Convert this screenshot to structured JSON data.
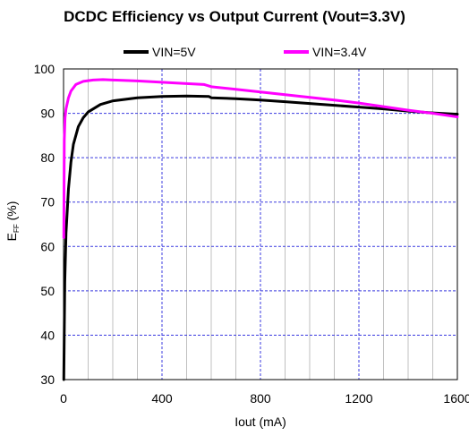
{
  "chart_data": {
    "type": "line",
    "title": "DCDC Efficiency vs Output Current (Vout=3.3V)",
    "xlabel": "Iout (mA)",
    "ylabel_main": "E",
    "ylabel_sub": "FF",
    "ylabel_tail": " (%)",
    "xlim": [
      0,
      1600
    ],
    "ylim": [
      30,
      100
    ],
    "xticks": [
      0,
      400,
      800,
      1200,
      1600
    ],
    "yticks": [
      30,
      40,
      50,
      60,
      70,
      80,
      90,
      100
    ],
    "x_minor_step": 100,
    "y_minor_step": 10,
    "grid": true,
    "legend_position": "top",
    "series": [
      {
        "name": "VIN=5V",
        "color": "#000000",
        "points": [
          [
            1,
            30
          ],
          [
            5,
            52
          ],
          [
            10,
            63
          ],
          [
            20,
            73
          ],
          [
            30,
            79
          ],
          [
            40,
            83
          ],
          [
            60,
            87
          ],
          [
            80,
            89
          ],
          [
            100,
            90.3
          ],
          [
            150,
            92
          ],
          [
            200,
            92.8
          ],
          [
            300,
            93.5
          ],
          [
            400,
            93.8
          ],
          [
            500,
            93.9
          ],
          [
            590,
            93.8
          ],
          [
            600,
            93.5
          ],
          [
            700,
            93.3
          ],
          [
            800,
            93
          ],
          [
            900,
            92.6
          ],
          [
            1000,
            92.2
          ],
          [
            1100,
            91.8
          ],
          [
            1200,
            91.4
          ],
          [
            1300,
            91
          ],
          [
            1400,
            90.5
          ],
          [
            1500,
            90.1
          ],
          [
            1600,
            89.8
          ]
        ]
      },
      {
        "name": "VIN=3.4V",
        "color": "#ff00ff",
        "points": [
          [
            1,
            62
          ],
          [
            3,
            84
          ],
          [
            6,
            89
          ],
          [
            10,
            91
          ],
          [
            20,
            93.5
          ],
          [
            30,
            95
          ],
          [
            50,
            96.5
          ],
          [
            80,
            97.2
          ],
          [
            120,
            97.5
          ],
          [
            160,
            97.6
          ],
          [
            200,
            97.5
          ],
          [
            300,
            97.3
          ],
          [
            400,
            97
          ],
          [
            500,
            96.7
          ],
          [
            570,
            96.5
          ],
          [
            600,
            96
          ],
          [
            700,
            95.4
          ],
          [
            800,
            94.8
          ],
          [
            900,
            94.2
          ],
          [
            1000,
            93.6
          ],
          [
            1100,
            93
          ],
          [
            1200,
            92.3
          ],
          [
            1300,
            91.5
          ],
          [
            1400,
            90.7
          ],
          [
            1500,
            90
          ],
          [
            1600,
            89.2
          ]
        ]
      }
    ]
  }
}
